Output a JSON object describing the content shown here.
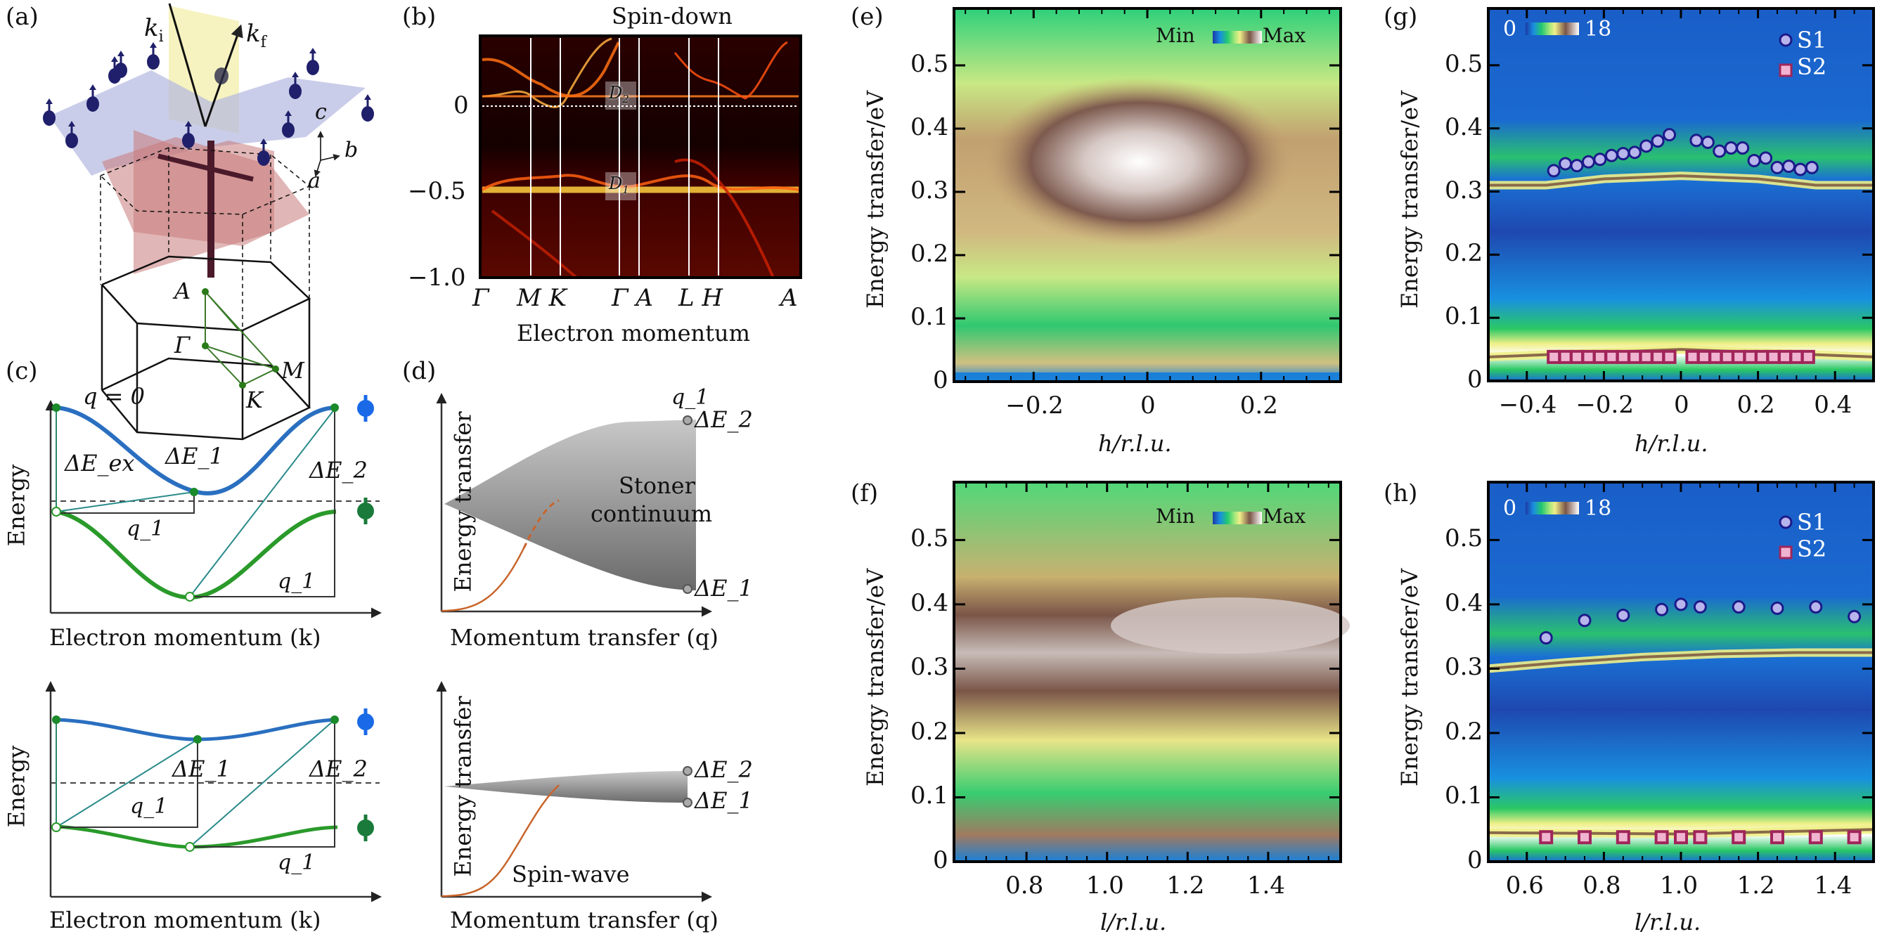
{
  "figure": {
    "panel_labels": [
      "(a)",
      "(b)",
      "(c)",
      "(d)",
      "(e)",
      "(f)",
      "(g)",
      "(h)"
    ]
  },
  "panel_a": {
    "vector_labels": {
      "ki": "k",
      "ki_sub": "i",
      "kf": "k",
      "kf_sub": "f"
    },
    "axis_labels": {
      "c": "c",
      "b": "b",
      "a": "a"
    },
    "bz_points": [
      "A",
      "Γ",
      "M",
      "K"
    ],
    "colors": {
      "atom": "#1f1f6b",
      "plane": "#b4b8e0",
      "scatter_plane": "#f4f0b0",
      "bz_plane": "#c97a7a",
      "bz_path": "#3a7a2a"
    }
  },
  "chart_data": [
    {
      "id": "b",
      "type": "heatmap",
      "title": "Spin-down",
      "xlabel": "Electron momentum",
      "ylabel": "",
      "x_ticks": [
        "Γ",
        "M",
        "K",
        "Γ",
        "A",
        "L",
        "H",
        "A"
      ],
      "x_tick_labels_display": [
        "Γ",
        "M K",
        "Γ A",
        "L H",
        "A"
      ],
      "y_ticks": [
        0,
        -0.5,
        -1.0
      ],
      "y_tick_labels": [
        "0",
        "−0.5",
        "−1.0"
      ],
      "ylim": [
        -1.0,
        0.3
      ],
      "annotations": [
        {
          "text": "D",
          "sub": "2",
          "y": 0.05
        },
        {
          "text": "D",
          "sub": "1",
          "y": -0.5
        }
      ],
      "fermi_level": 0,
      "colormap": "hot"
    },
    {
      "id": "c-top",
      "type": "line",
      "xlabel": "Electron momentum (k)",
      "ylabel": "Energy",
      "labels": [
        "q = 0",
        "ΔE_ex",
        "ΔE_1",
        "ΔE_2",
        "q_1",
        "q_1"
      ],
      "series": [
        {
          "name": "spin-down band",
          "color": "#2a6fc0"
        },
        {
          "name": "spin-up band",
          "color": "#2a9a2a"
        }
      ]
    },
    {
      "id": "c-bottom",
      "type": "line",
      "xlabel": "Electron momentum (k)",
      "ylabel": "Energy",
      "labels": [
        "ΔE_1",
        "ΔE_2",
        "q_1",
        "q_1"
      ],
      "series": [
        {
          "name": "spin-down band",
          "color": "#2a6fc0"
        },
        {
          "name": "spin-up band",
          "color": "#2a9a2a"
        }
      ]
    },
    {
      "id": "d-top",
      "type": "area",
      "xlabel": "Momentum transfer (q)",
      "ylabel": "Energy transfer",
      "labels": [
        "Stoner",
        "continuum",
        "q_1",
        "ΔE_2",
        "ΔE_1"
      ]
    },
    {
      "id": "d-bottom",
      "type": "area",
      "xlabel": "Momentum transfer (q)",
      "ylabel": "Energy transfer",
      "labels": [
        "Spin-wave",
        "ΔE_2",
        "ΔE_1"
      ]
    },
    {
      "id": "e",
      "type": "heatmap",
      "xlabel": "h/r.l.u.",
      "ylabel": "Energy transfer/eV",
      "xlim": [
        -0.34,
        0.34
      ],
      "ylim": [
        0,
        0.59
      ],
      "x_ticks": [
        -0.2,
        0,
        0.2
      ],
      "x_tick_labels": [
        "−0.2",
        "0",
        "0.2"
      ],
      "y_ticks": [
        0,
        0.1,
        0.2,
        0.3,
        0.4,
        0.5
      ],
      "y_tick_labels": [
        "0",
        "0.1",
        "0.2",
        "0.3",
        "0.4",
        "0.5"
      ],
      "colorbar": {
        "min_label": "Min",
        "max_label": "Max"
      },
      "peak": {
        "x": 0,
        "y": 0.33
      }
    },
    {
      "id": "f",
      "type": "heatmap",
      "xlabel": "l/r.l.u.",
      "ylabel": "Energy transfer/eV",
      "xlim": [
        0.62,
        1.58
      ],
      "ylim": [
        0,
        0.59
      ],
      "x_ticks": [
        0.8,
        1.0,
        1.2,
        1.4
      ],
      "x_tick_labels": [
        "0.8",
        "1.0",
        "1.2",
        "1.4"
      ],
      "y_ticks": [
        0,
        0.1,
        0.2,
        0.3,
        0.4,
        0.5
      ],
      "y_tick_labels": [
        "0",
        "0.1",
        "0.2",
        "0.3",
        "0.4",
        "0.5"
      ],
      "colorbar": {
        "min_label": "Min",
        "max_label": "Max"
      }
    },
    {
      "id": "g",
      "type": "scatter",
      "xlabel": "h/r.l.u.",
      "ylabel": "Energy transfer/eV",
      "xlim": [
        -0.5,
        0.5
      ],
      "ylim": [
        0,
        0.59
      ],
      "x_ticks": [
        -0.4,
        -0.2,
        0,
        0.2,
        0.4
      ],
      "x_tick_labels": [
        "−0.4",
        "−0.2",
        "0",
        "0.2",
        "0.4"
      ],
      "y_ticks": [
        0,
        0.1,
        0.2,
        0.3,
        0.4,
        0.5
      ],
      "y_tick_labels": [
        "0",
        "0.1",
        "0.2",
        "0.3",
        "0.4",
        "0.5"
      ],
      "colorbar": {
        "min_label": "0",
        "max_label": "18"
      },
      "legend": {
        "position": "top-right",
        "entries": [
          "S1",
          "S2"
        ]
      },
      "series": [
        {
          "name": "S1",
          "marker": "circle",
          "x": [
            -0.33,
            -0.3,
            -0.27,
            -0.24,
            -0.21,
            -0.18,
            -0.15,
            -0.12,
            -0.09,
            -0.06,
            -0.03,
            0.04,
            0.07,
            0.1,
            0.13,
            0.16,
            0.19,
            0.22,
            0.25,
            0.28,
            0.31,
            0.34
          ],
          "y": [
            0.333,
            0.344,
            0.341,
            0.347,
            0.351,
            0.357,
            0.36,
            0.362,
            0.372,
            0.38,
            0.39,
            0.381,
            0.378,
            0.364,
            0.369,
            0.369,
            0.349,
            0.353,
            0.338,
            0.34,
            0.335,
            0.338
          ]
        },
        {
          "name": "S2",
          "marker": "square",
          "x": [
            -0.33,
            -0.3,
            -0.27,
            -0.24,
            -0.21,
            -0.18,
            -0.15,
            -0.12,
            -0.09,
            -0.06,
            -0.03,
            0.03,
            0.06,
            0.09,
            0.12,
            0.15,
            0.18,
            0.21,
            0.24,
            0.27,
            0.3,
            0.33
          ],
          "y": [
            0.038,
            0.038,
            0.038,
            0.038,
            0.038,
            0.038,
            0.038,
            0.038,
            0.038,
            0.038,
            0.038,
            0.038,
            0.038,
            0.038,
            0.038,
            0.038,
            0.038,
            0.038,
            0.038,
            0.038,
            0.038,
            0.038
          ]
        }
      ],
      "bands": [
        {
          "name": "upper-branch",
          "x": [
            -0.5,
            -0.35,
            -0.2,
            0,
            0.2,
            0.35,
            0.5
          ],
          "y": [
            0.31,
            0.31,
            0.32,
            0.325,
            0.32,
            0.31,
            0.31
          ]
        },
        {
          "name": "lower-branch",
          "x": [
            -0.5,
            0,
            0.5
          ],
          "y": [
            0.038,
            0.05,
            0.038
          ]
        }
      ]
    },
    {
      "id": "h",
      "type": "scatter",
      "xlabel": "l/r.l.u.",
      "ylabel": "Energy transfer/eV",
      "xlim": [
        0.5,
        1.5
      ],
      "ylim": [
        0,
        0.59
      ],
      "x_ticks": [
        0.6,
        0.8,
        1.0,
        1.2,
        1.4
      ],
      "x_tick_labels": [
        "0.6",
        "0.8",
        "1.0",
        "1.2",
        "1.4"
      ],
      "y_ticks": [
        0,
        0.1,
        0.2,
        0.3,
        0.4,
        0.5
      ],
      "y_tick_labels": [
        "0",
        "0.1",
        "0.2",
        "0.3",
        "0.4",
        "0.5"
      ],
      "colorbar": {
        "min_label": "0",
        "max_label": "18"
      },
      "legend": {
        "position": "top-right",
        "entries": [
          "S1",
          "S2"
        ]
      },
      "series": [
        {
          "name": "S1",
          "marker": "circle",
          "x": [
            0.65,
            0.75,
            0.85,
            0.95,
            1.0,
            1.05,
            1.15,
            1.25,
            1.35,
            1.45
          ],
          "y": [
            0.348,
            0.375,
            0.383,
            0.392,
            0.4,
            0.396,
            0.396,
            0.394,
            0.396,
            0.381
          ]
        },
        {
          "name": "S2",
          "marker": "square",
          "x": [
            0.65,
            0.75,
            0.85,
            0.95,
            1.0,
            1.05,
            1.15,
            1.25,
            1.35,
            1.45
          ],
          "y": [
            0.038,
            0.038,
            0.038,
            0.038,
            0.038,
            0.038,
            0.038,
            0.038,
            0.038,
            0.038
          ]
        }
      ],
      "bands": [
        {
          "name": "upper-branch",
          "x": [
            0.5,
            0.7,
            0.9,
            1.1,
            1.3,
            1.5
          ],
          "y": [
            0.3,
            0.31,
            0.318,
            0.323,
            0.325,
            0.325
          ]
        },
        {
          "name": "lower-branch",
          "x": [
            0.5,
            1.0,
            1.5
          ],
          "y": [
            0.045,
            0.043,
            0.05
          ]
        }
      ]
    }
  ],
  "colors": {
    "s1_fill": "#b8b4ec",
    "s1_edge": "#1c1a8a",
    "s2_fill": "#f0b4d0",
    "s2_edge": "#a0255a",
    "spin_down": "#2a6fc0",
    "spin_up": "#2a9a2a",
    "spin_wave": "#d06a2a"
  }
}
